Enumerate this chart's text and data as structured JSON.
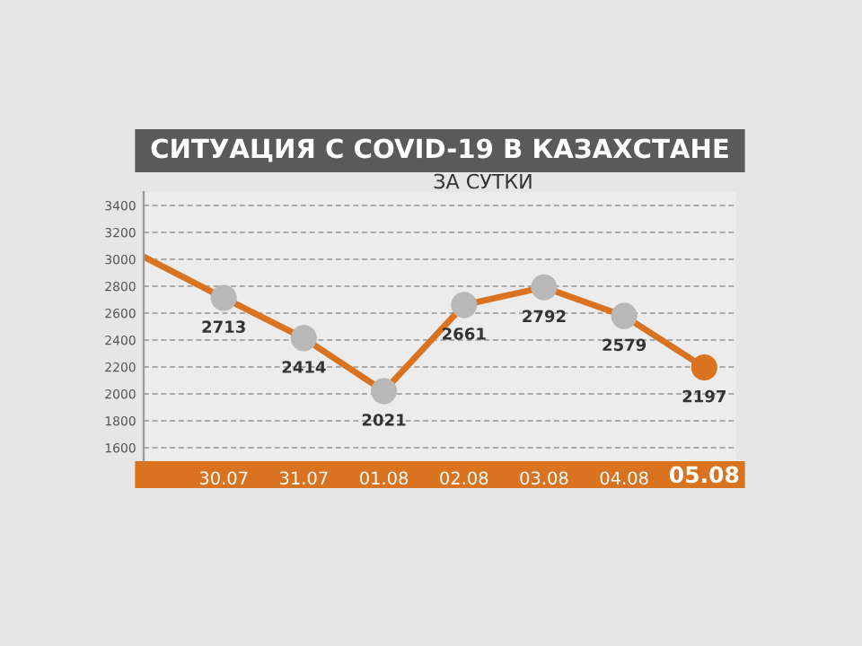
{
  "chart_data": {
    "type": "line",
    "title": "СИТУАЦИЯ С COVID-19 В КАЗАХСТАНЕ",
    "subtitle": "ЗА СУТКИ",
    "categories": [
      null,
      "30.07",
      "31.07",
      "01.08",
      "02.08",
      "03.08",
      "04.08",
      "05.08"
    ],
    "series": [
      {
        "color": "#d9731f",
        "values": [
          3020,
          2713,
          2414,
          2021,
          2661,
          2792,
          2579,
          2197
        ],
        "colors": [
          null,
          "#b8b8b8",
          "#b8b8b8",
          "#b8b8b8",
          "#b8b8b8",
          "#b8b8b8",
          "#b8b8b8",
          "#d9731f"
        ],
        "value_labels": [
          null,
          "2713",
          "2414",
          "2021",
          "2661",
          "2792",
          "2579",
          "2197"
        ]
      }
    ],
    "ylim": [
      1500,
      3500
    ],
    "yticks": [
      1600,
      1800,
      2000,
      2200,
      2400,
      2600,
      2800,
      3000,
      3200,
      3400
    ],
    "grid": "y",
    "marker": "circle"
  }
}
